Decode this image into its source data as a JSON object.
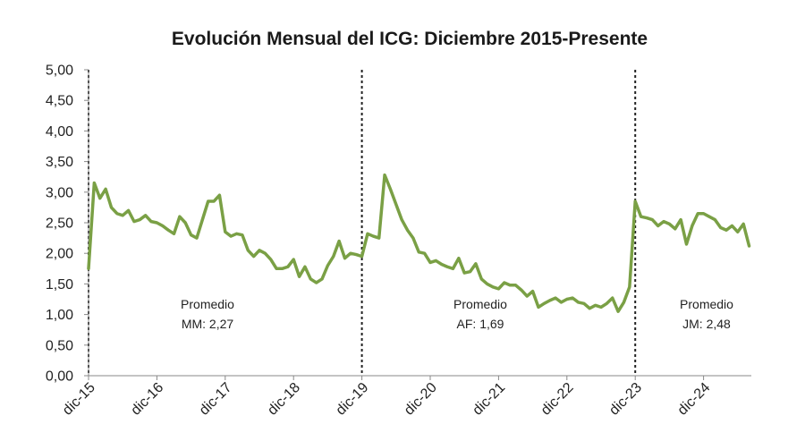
{
  "chart_data": {
    "type": "line",
    "title": "Evolución Mensual del ICG: Diciembre 2015-Presente",
    "xlabel": "",
    "ylabel": "",
    "ylim": [
      0,
      5
    ],
    "y_ticks": [
      "0,00",
      "0,50",
      "1,00",
      "1,50",
      "2,00",
      "2,50",
      "3,00",
      "3,50",
      "4,00",
      "4,50",
      "5,00"
    ],
    "x_ticks": [
      "dic-15",
      "dic-16",
      "dic-17",
      "dic-18",
      "dic-19",
      "dic-20",
      "dic-21",
      "dic-22",
      "dic-23",
      "dic-24"
    ],
    "x_tick_month_index": [
      0,
      12,
      24,
      36,
      48,
      60,
      72,
      84,
      96,
      108
    ],
    "color": "#7aa045",
    "series": [
      {
        "name": "ICG",
        "start": "dic-15",
        "values": [
          1.75,
          3.15,
          2.9,
          3.05,
          2.75,
          2.65,
          2.62,
          2.7,
          2.52,
          2.55,
          2.62,
          2.52,
          2.5,
          2.45,
          2.38,
          2.32,
          2.6,
          2.5,
          2.3,
          2.25,
          2.55,
          2.85,
          2.85,
          2.95,
          2.35,
          2.28,
          2.32,
          2.3,
          2.05,
          1.95,
          2.05,
          2.0,
          1.9,
          1.75,
          1.75,
          1.78,
          1.9,
          1.62,
          1.78,
          1.58,
          1.52,
          1.58,
          1.8,
          1.95,
          2.2,
          1.92,
          2.0,
          1.98,
          1.95,
          2.32,
          2.28,
          2.25,
          3.28,
          3.05,
          2.8,
          2.55,
          2.38,
          2.25,
          2.02,
          2.0,
          1.85,
          1.88,
          1.82,
          1.78,
          1.75,
          1.92,
          1.68,
          1.7,
          1.83,
          1.58,
          1.5,
          1.45,
          1.42,
          1.52,
          1.48,
          1.48,
          1.4,
          1.3,
          1.38,
          1.12,
          1.18,
          1.23,
          1.27,
          1.2,
          1.25,
          1.27,
          1.2,
          1.18,
          1.1,
          1.15,
          1.12,
          1.18,
          1.27,
          1.05,
          1.2,
          1.45,
          2.85,
          2.6,
          2.58,
          2.55,
          2.45,
          2.52,
          2.48,
          2.4,
          2.55,
          2.15,
          2.45,
          2.65,
          2.65,
          2.6,
          2.55,
          2.42,
          2.38,
          2.45,
          2.35,
          2.48,
          2.12
        ]
      }
    ],
    "period_separators": [
      "dic-15",
      "dic-19",
      "dic-23"
    ],
    "annotations": [
      {
        "label": "Promedio",
        "value": "MM: 2,27"
      },
      {
        "label": "Promedio",
        "value": "AF: 1,69"
      },
      {
        "label": "Promedio",
        "value": "JM: 2,48"
      }
    ]
  }
}
